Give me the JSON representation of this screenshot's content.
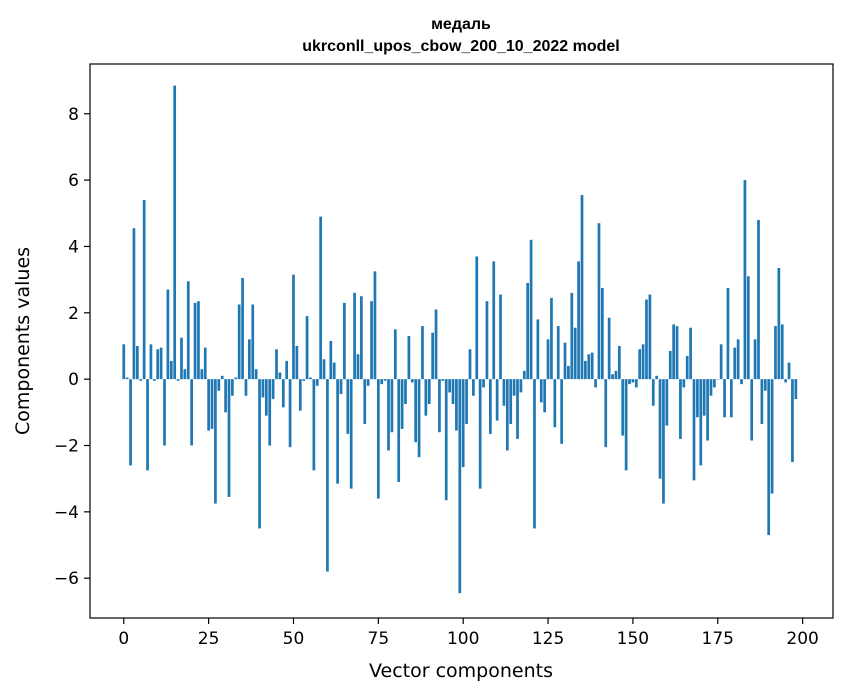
{
  "chart_data": {
    "type": "bar",
    "title": "медаль",
    "subtitle": "ukrconll_upos_cbow_200_10_2022 model",
    "xlabel": "Vector components",
    "ylabel": "Components values",
    "xlim": [
      -9.95,
      208.95
    ],
    "ylim": [
      -7.2,
      9.5
    ],
    "xticks": [
      0,
      25,
      50,
      75,
      100,
      125,
      150,
      175,
      200
    ],
    "yticks": [
      -6,
      -4,
      -2,
      0,
      2,
      4,
      6,
      8
    ],
    "bar_color": "#1f77b4",
    "grid": false,
    "legend": "none",
    "values": [
      1.05,
      0.05,
      -2.6,
      4.55,
      1.0,
      -0.05,
      5.4,
      -2.75,
      1.05,
      -0.05,
      0.9,
      0.95,
      -2.0,
      2.7,
      0.55,
      8.85,
      -0.05,
      1.25,
      0.3,
      2.95,
      -2.0,
      2.3,
      2.35,
      0.3,
      0.95,
      -1.55,
      -1.5,
      -3.75,
      -0.35,
      0.1,
      -1.0,
      -3.55,
      -0.5,
      0.05,
      2.25,
      3.05,
      -0.5,
      1.2,
      2.25,
      0.3,
      -4.5,
      -0.55,
      -1.1,
      -2.0,
      -0.6,
      0.9,
      0.2,
      -0.85,
      0.55,
      -2.05,
      3.15,
      1.0,
      -0.95,
      -0.05,
      1.9,
      0.05,
      -2.75,
      -0.2,
      4.9,
      0.6,
      -5.8,
      1.15,
      0.5,
      -3.15,
      -0.45,
      2.3,
      -1.65,
      -3.3,
      2.6,
      0.75,
      2.5,
      -1.35,
      -0.2,
      2.35,
      3.25,
      -3.6,
      -0.15,
      -0.05,
      -2.15,
      -1.6,
      1.5,
      -3.1,
      -1.5,
      -0.75,
      1.3,
      -0.1,
      -1.9,
      -2.35,
      1.6,
      -1.1,
      -0.75,
      1.4,
      2.1,
      -1.6,
      -0.05,
      -3.65,
      -0.4,
      -0.75,
      -1.55,
      -6.45,
      -2.65,
      -1.35,
      0.9,
      -0.5,
      3.7,
      -3.3,
      -0.25,
      2.35,
      -1.65,
      3.55,
      -1.25,
      2.55,
      -0.8,
      -2.15,
      -1.35,
      -0.5,
      -1.8,
      -0.4,
      0.25,
      2.9,
      4.2,
      -4.5,
      1.8,
      -0.7,
      -1.0,
      1.2,
      2.45,
      -1.45,
      1.6,
      -1.95,
      1.1,
      0.4,
      2.6,
      1.55,
      3.55,
      5.55,
      0.55,
      0.75,
      0.8,
      -0.25,
      4.7,
      2.75,
      -2.05,
      1.85,
      0.15,
      0.25,
      1.0,
      -1.7,
      -2.75,
      -0.15,
      -0.1,
      -0.25,
      0.9,
      1.05,
      2.4,
      2.55,
      -0.8,
      0.1,
      -3.0,
      -3.75,
      -1.4,
      0.85,
      1.65,
      1.6,
      -1.8,
      -0.25,
      0.7,
      1.55,
      -3.05,
      -1.15,
      -2.6,
      -1.1,
      -1.85,
      -0.5,
      -0.25,
      0.0,
      1.05,
      -1.15,
      2.75,
      -1.15,
      0.95,
      1.2,
      -0.15,
      6.0,
      3.1,
      -1.85,
      1.2,
      4.8,
      -1.35,
      -0.35,
      -4.7,
      -3.45,
      1.6,
      3.35,
      1.65,
      -0.1,
      0.5,
      -2.5,
      -0.6
    ]
  }
}
